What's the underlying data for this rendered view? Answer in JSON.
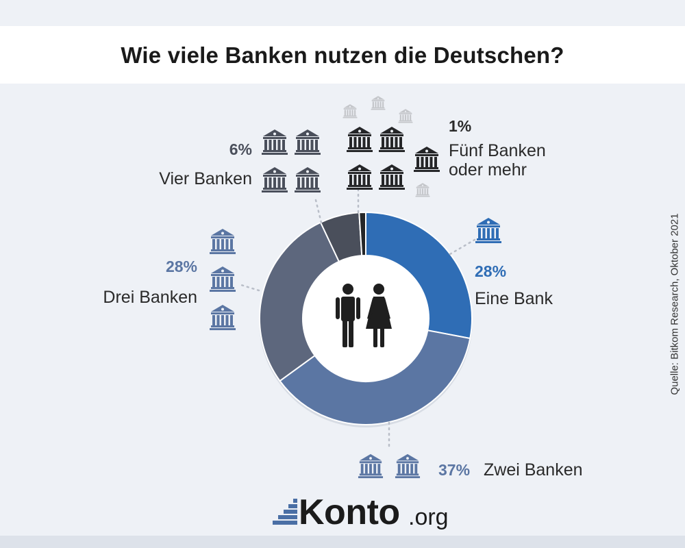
{
  "title": "Wie viele Banken nutzen die Deutschen?",
  "source": "Quelle: Bitkom Research, Oktober 2021",
  "logo": {
    "name": "Konto",
    "tld": ".org"
  },
  "icons": {
    "bank": "bank-icon",
    "center": "man-woman-icon"
  },
  "colors": {
    "eine_bank": "#2f6db5",
    "zwei_banken": "#5b76a3",
    "drei_banken": "#5d677d",
    "vier_banken": "#4a4f5b",
    "fuenf_banken": "#252628",
    "faded_bank": "#c4c6ca"
  },
  "chart_data": {
    "type": "pie",
    "donut": true,
    "title": "Wie viele Banken nutzen die Deutschen?",
    "series": [
      {
        "key": "eine_bank",
        "label": "Eine Bank",
        "value": 28,
        "display": "28%",
        "banks": 1
      },
      {
        "key": "zwei_banken",
        "label": "Zwei Banken",
        "value": 37,
        "display": "37%",
        "banks": 2
      },
      {
        "key": "drei_banken",
        "label": "Drei Banken",
        "value": 28,
        "display": "28%",
        "banks": 3
      },
      {
        "key": "vier_banken",
        "label": "Vier Banken",
        "value": 6,
        "display": "6%",
        "banks": 4
      },
      {
        "key": "fuenf_banken",
        "label_lines": [
          "Fünf Banken",
          "oder mehr"
        ],
        "value": 1,
        "display": "1%",
        "banks": 5
      }
    ]
  }
}
